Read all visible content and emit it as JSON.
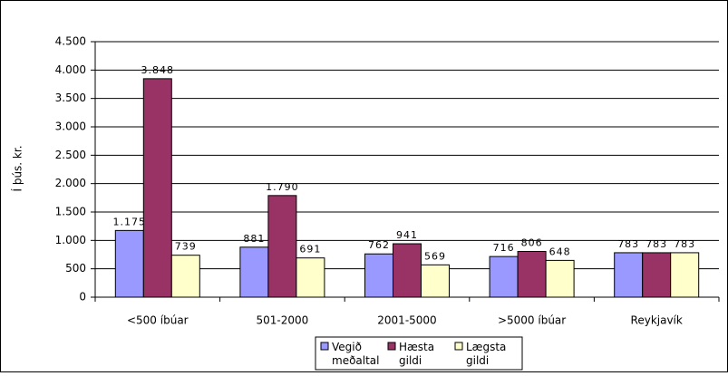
{
  "chart_data": {
    "type": "bar",
    "y_label": "Í þús. kr.",
    "categories": [
      "<500 íbúar",
      "501-2000",
      "2001-5000",
      ">5000 íbúar",
      "Reykjavík"
    ],
    "series": [
      {
        "name": "Vegið meðaltal",
        "color": "#9999ff",
        "values": [
          1175,
          881,
          762,
          716,
          783
        ],
        "value_labels": [
          "1.175",
          "881",
          "762",
          "716",
          "783"
        ]
      },
      {
        "name": "Hæsta gildi",
        "color": "#993366",
        "values": [
          3848,
          1790,
          941,
          806,
          783
        ],
        "value_labels": [
          "3.848",
          "1.790",
          "941",
          "806",
          "783"
        ]
      },
      {
        "name": "Lægsta gildi",
        "color": "#ffffcc",
        "values": [
          739,
          691,
          569,
          648,
          783
        ],
        "value_labels": [
          "739",
          "691",
          "569",
          "648",
          "783"
        ]
      }
    ],
    "ylim": [
      0,
      4500
    ],
    "yticks": [
      0,
      500,
      {
        "value": 1000,
        "label": "1.000"
      },
      {
        "value": 1500,
        "label": "1.500"
      },
      {
        "value": 2000,
        "label": "2.000"
      },
      {
        "value": 2500,
        "label": "2.500"
      },
      {
        "value": 3000,
        "label": "3.000"
      },
      {
        "value": 3500,
        "label": "3.500"
      },
      {
        "value": 4000,
        "label": "4.000"
      },
      {
        "value": 4500,
        "label": "4.500"
      }
    ],
    "grid": true,
    "legend": "bottom"
  }
}
